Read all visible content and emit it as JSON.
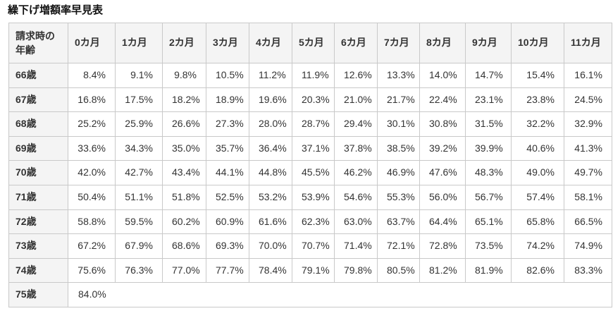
{
  "page": {
    "title": "繰下げ増額率早見表"
  },
  "table": {
    "corner_header": "請求時の年齢",
    "month_headers": [
      "0カ月",
      "1カ月",
      "2カ月",
      "3カ月",
      "4カ月",
      "5カ月",
      "6カ月",
      "7カ月",
      "8カ月",
      "9カ月",
      "10カ月",
      "11カ月"
    ],
    "rows": [
      {
        "age": "66歳",
        "values": [
          "8.4%",
          "9.1%",
          "9.8%",
          "10.5%",
          "11.2%",
          "11.9%",
          "12.6%",
          "13.3%",
          "14.0%",
          "14.7%",
          "15.4%",
          "16.1%"
        ]
      },
      {
        "age": "67歳",
        "values": [
          "16.8%",
          "17.5%",
          "18.2%",
          "18.9%",
          "19.6%",
          "20.3%",
          "21.0%",
          "21.7%",
          "22.4%",
          "23.1%",
          "23.8%",
          "24.5%"
        ]
      },
      {
        "age": "68歳",
        "values": [
          "25.2%",
          "25.9%",
          "26.6%",
          "27.3%",
          "28.0%",
          "28.7%",
          "29.4%",
          "30.1%",
          "30.8%",
          "31.5%",
          "32.2%",
          "32.9%"
        ]
      },
      {
        "age": "69歳",
        "values": [
          "33.6%",
          "34.3%",
          "35.0%",
          "35.7%",
          "36.4%",
          "37.1%",
          "37.8%",
          "38.5%",
          "39.2%",
          "39.9%",
          "40.6%",
          "41.3%"
        ]
      },
      {
        "age": "70歳",
        "values": [
          "42.0%",
          "42.7%",
          "43.4%",
          "44.1%",
          "44.8%",
          "45.5%",
          "46.2%",
          "46.9%",
          "47.6%",
          "48.3%",
          "49.0%",
          "49.7%"
        ]
      },
      {
        "age": "71歳",
        "values": [
          "50.4%",
          "51.1%",
          "51.8%",
          "52.5%",
          "53.2%",
          "53.9%",
          "54.6%",
          "55.3%",
          "56.0%",
          "56.7%",
          "57.4%",
          "58.1%"
        ]
      },
      {
        "age": "72歳",
        "values": [
          "58.8%",
          "59.5%",
          "60.2%",
          "60.9%",
          "61.6%",
          "62.3%",
          "63.0%",
          "63.7%",
          "64.4%",
          "65.1%",
          "65.8%",
          "66.5%"
        ]
      },
      {
        "age": "73歳",
        "values": [
          "67.2%",
          "67.9%",
          "68.6%",
          "69.3%",
          "70.0%",
          "70.7%",
          "71.4%",
          "72.1%",
          "72.8%",
          "73.5%",
          "74.2%",
          "74.9%"
        ]
      },
      {
        "age": "74歳",
        "values": [
          "75.6%",
          "76.3%",
          "77.0%",
          "77.7%",
          "78.4%",
          "79.1%",
          "79.8%",
          "80.5%",
          "81.2%",
          "81.9%",
          "82.6%",
          "83.3%"
        ]
      },
      {
        "age": "75歳",
        "values": [
          "84.0%"
        ],
        "merged": true
      }
    ]
  },
  "colors": {
    "header_background": "#f4f4f4",
    "cell_background": "#ffffff",
    "border": "#c9c9c9",
    "text": "#333333",
    "title_text": "#111111"
  }
}
